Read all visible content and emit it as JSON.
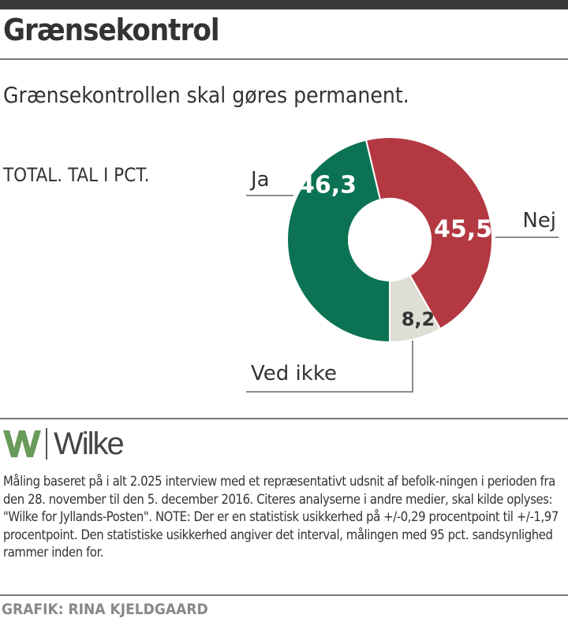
{
  "title": "Grænsekontrol",
  "subtitle": "Grænsekontrollen skal gøres permanent.",
  "unit_label": "TOTAL. TAL I PCT.",
  "chart_data": {
    "type": "pie",
    "donut": true,
    "slices": [
      {
        "label": "Ja",
        "value": 46.3,
        "value_label": "46,3",
        "color": "#0b7353"
      },
      {
        "label": "Nej",
        "value": 45.5,
        "value_label": "45,5",
        "color": "#b33842"
      },
      {
        "label": "Ved ikke",
        "value": 8.2,
        "value_label": "8,2",
        "color": "#deded5"
      }
    ]
  },
  "logo": {
    "text": "Wilke",
    "color": "#6a9a5a"
  },
  "note": "Måling baseret på i alt 2.025 interview med et repræsentativt udsnit af befolk-ningen i perioden fra den 28. november til den 5. december 2016. Citeres analyserne i andre medier, skal kilde oplyses: \"Wilke for Jyllands-Posten\". NOTE: Der er en statistisk usikkerhed på +/-0,29 procentpoint til +/-1,97 procentpoint. Den statistiske usikkerhed angiver det interval, målingen med 95 pct. sandsynlighed rammer inden for.",
  "credit": "GRAFIK: RINA KJELDGAARD"
}
